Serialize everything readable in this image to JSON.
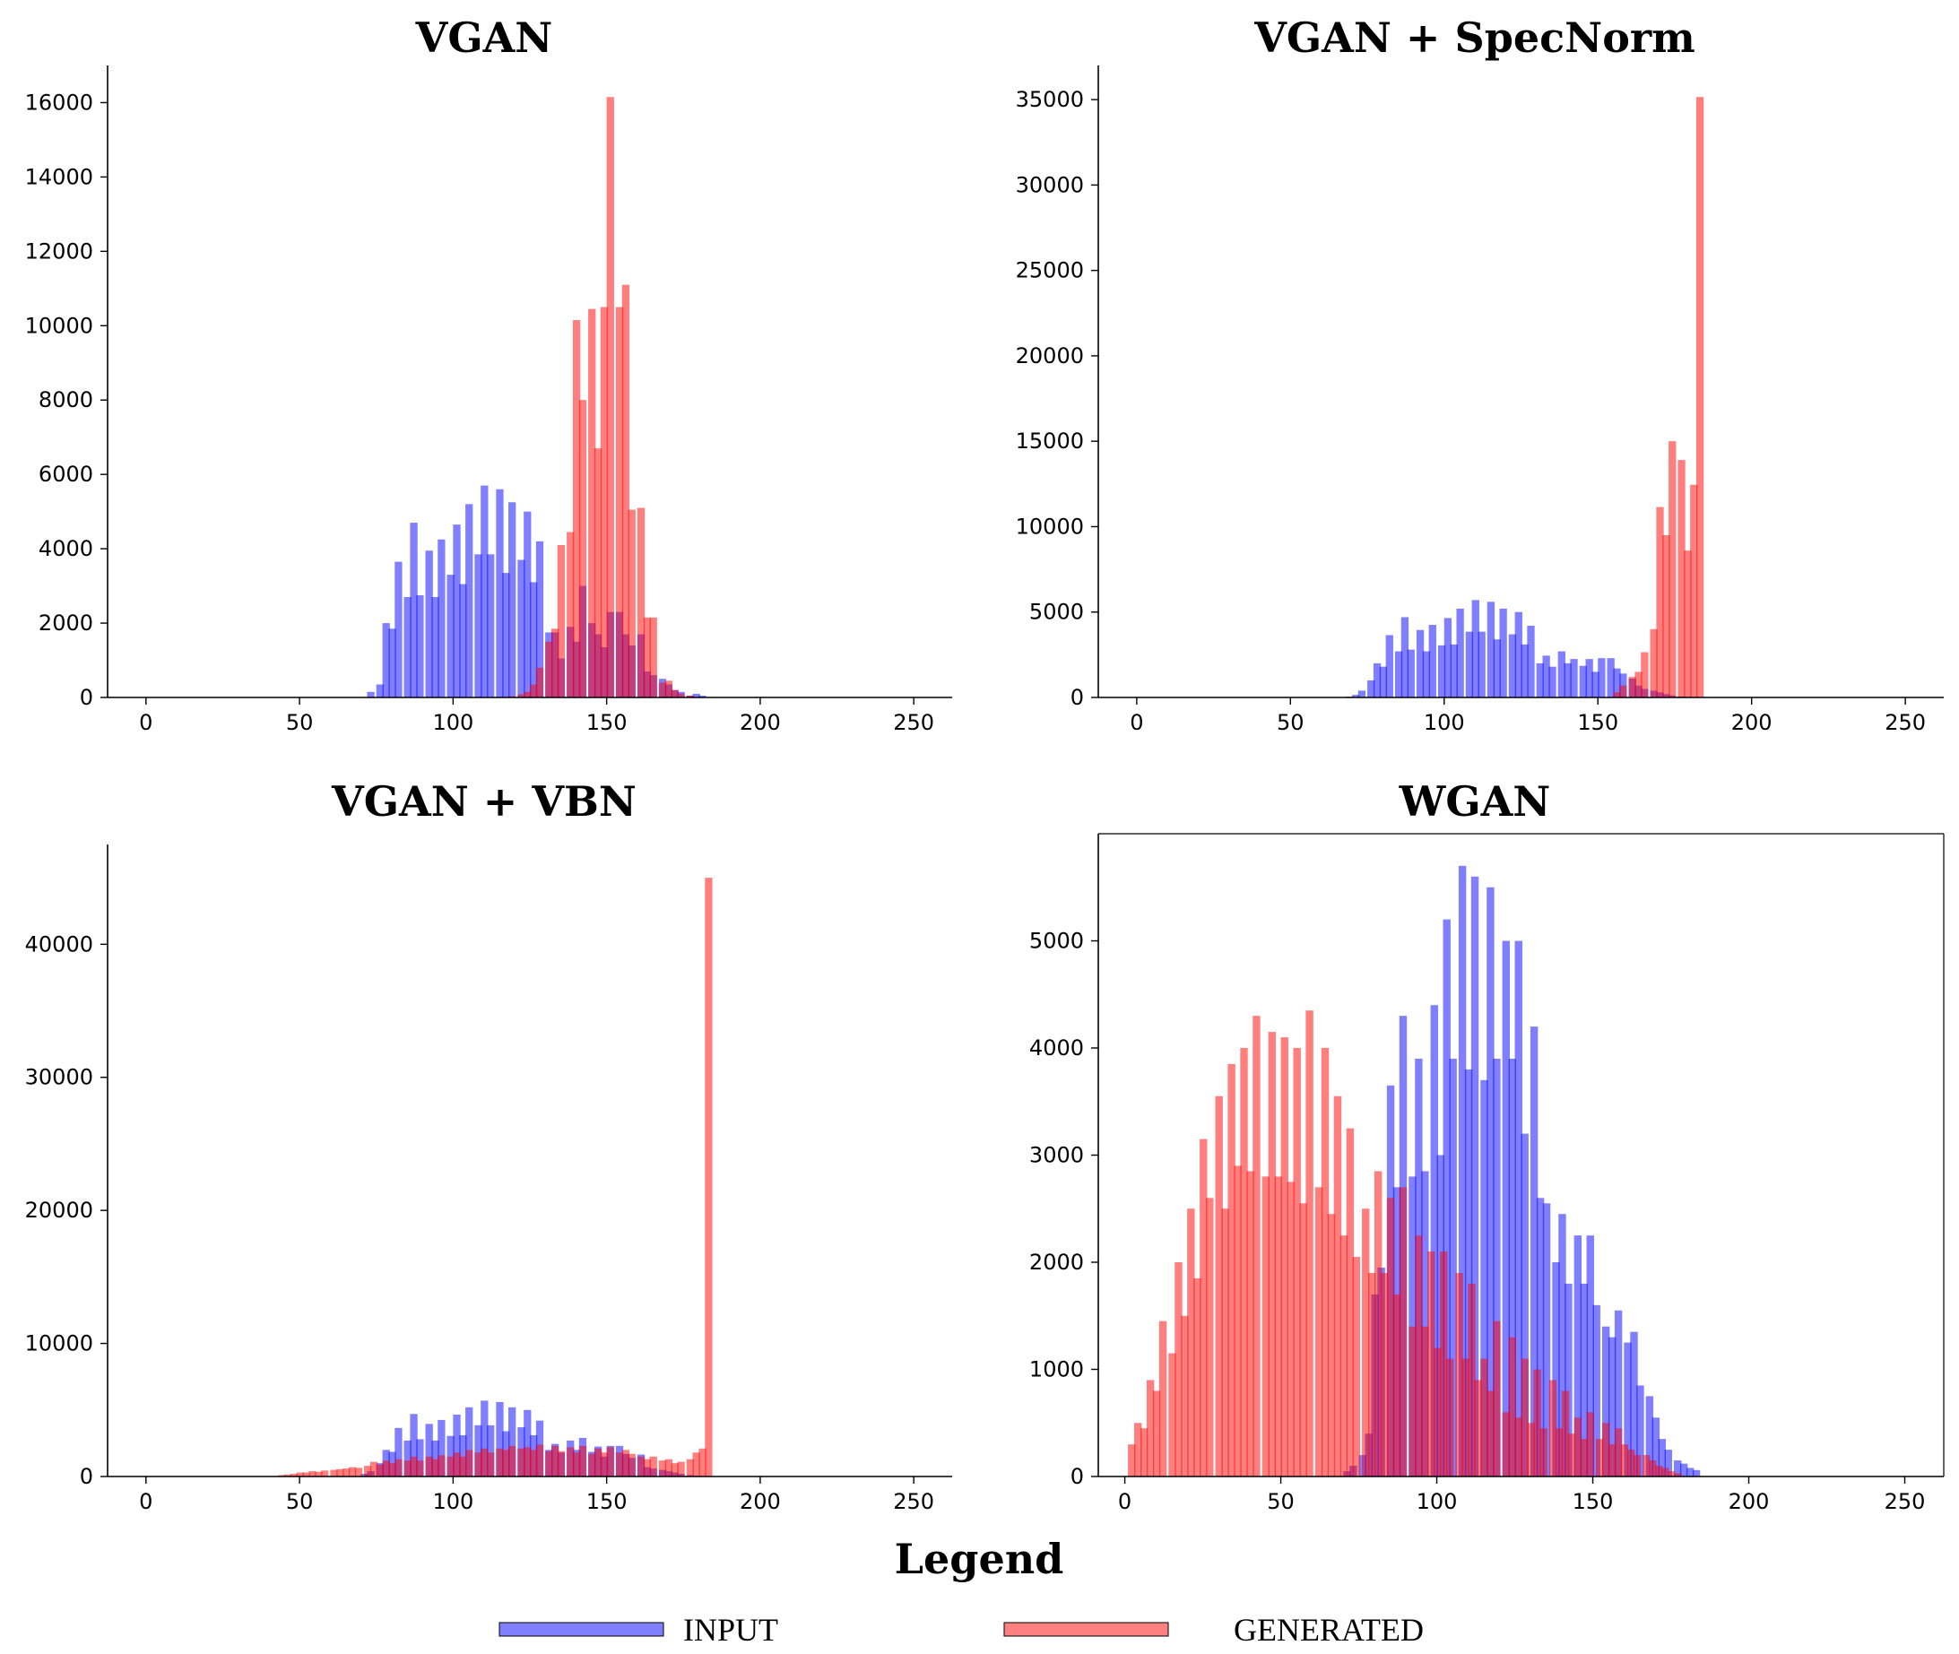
{
  "legend": {
    "title": "Legend",
    "entries": [
      {
        "label": "INPUT",
        "color": "#0000ff",
        "opacity": 0.5
      },
      {
        "label": "GENERATED",
        "color": "#ff0000",
        "opacity": 0.5
      }
    ]
  },
  "chart_data": [
    {
      "type": "bar",
      "title": "VGAN",
      "xlabel": "",
      "ylabel": "",
      "xlim": [
        -12.5,
        262.5
      ],
      "ylim": [
        0,
        17000
      ],
      "xticks": [
        0,
        50,
        100,
        150,
        200,
        250
      ],
      "yticks": [
        0,
        2000,
        4000,
        6000,
        8000,
        10000,
        12000,
        14000,
        16000
      ],
      "bin_width": 2.3,
      "grid": false,
      "series": [
        {
          "name": "INPUT",
          "color": "#0000ff",
          "x": [
            72,
            75,
            77,
            79,
            81,
            84,
            86,
            88,
            91,
            93,
            95,
            98,
            100,
            102,
            104,
            107,
            109,
            111,
            114,
            116,
            118,
            121,
            123,
            125,
            127,
            130,
            132,
            134,
            137,
            139,
            141,
            144,
            146,
            148,
            150,
            153,
            155,
            157,
            160,
            162,
            164,
            167,
            169,
            171,
            173,
            176,
            178,
            180,
            183,
            185
          ],
          "values": [
            150,
            350,
            2000,
            1850,
            3650,
            2700,
            4700,
            2750,
            3950,
            2700,
            4250,
            3300,
            4650,
            3050,
            5200,
            3850,
            5700,
            3850,
            5600,
            3350,
            5250,
            3700,
            5000,
            3100,
            4200,
            1750,
            1750,
            1050,
            1900,
            1500,
            3000,
            2000,
            1700,
            1350,
            2300,
            2300,
            1700,
            1400,
            1700,
            700,
            600,
            500,
            350,
            200,
            150,
            50,
            100,
            50,
            0,
            0
          ]
        },
        {
          "name": "GENERATED",
          "color": "#ff0000",
          "x": [
            118,
            121,
            123,
            125,
            127,
            130,
            132,
            134,
            137,
            139,
            141,
            144,
            146,
            148,
            150,
            153,
            155,
            157,
            160,
            162,
            164,
            167,
            169,
            171,
            173,
            176,
            178
          ],
          "values": [
            30,
            80,
            150,
            350,
            800,
            1500,
            1850,
            4100,
            4450,
            10150,
            8000,
            10450,
            6700,
            10500,
            16150,
            10500,
            11100,
            5050,
            5100,
            2150,
            2150,
            400,
            450,
            200,
            100,
            50,
            0
          ]
        }
      ]
    },
    {
      "type": "bar",
      "title": "VGAN + SpecNorm",
      "xlabel": "",
      "ylabel": "",
      "xlim": [
        -12.5,
        262.5
      ],
      "ylim": [
        0,
        37000
      ],
      "xticks": [
        0,
        50,
        100,
        150,
        200,
        250
      ],
      "yticks": [
        0,
        5000,
        10000,
        15000,
        20000,
        25000,
        30000,
        35000
      ],
      "bin_width": 2.3,
      "grid": false,
      "series": [
        {
          "name": "INPUT",
          "color": "#0000ff",
          "x": [
            68,
            70,
            72,
            75,
            77,
            79,
            81,
            84,
            86,
            88,
            91,
            93,
            95,
            98,
            100,
            102,
            104,
            107,
            109,
            111,
            114,
            116,
            118,
            121,
            123,
            125,
            127,
            130,
            132,
            134,
            137,
            139,
            141,
            144,
            146,
            148,
            150,
            153,
            155,
            157,
            160,
            162,
            164,
            167,
            169,
            171,
            173,
            176,
            178,
            180,
            182
          ],
          "values": [
            50,
            150,
            400,
            1000,
            2000,
            1800,
            3650,
            2700,
            4700,
            2800,
            3950,
            2700,
            4250,
            3050,
            4650,
            3100,
            5200,
            3850,
            5700,
            3850,
            5600,
            3400,
            5200,
            3700,
            5000,
            3100,
            4200,
            2000,
            2450,
            1800,
            2700,
            2000,
            2250,
            1850,
            2250,
            1500,
            2300,
            2300,
            1700,
            1400,
            1100,
            700,
            500,
            400,
            300,
            200,
            120,
            60,
            40,
            20,
            0
          ]
        },
        {
          "name": "GENERATED",
          "color": "#ff0000",
          "x": [
            155,
            157,
            160,
            162,
            164,
            167,
            169,
            171,
            173,
            176,
            178,
            180,
            182
          ],
          "values": [
            300,
            700,
            1200,
            1500,
            2650,
            4000,
            11150,
            9500,
            15000,
            13900,
            8600,
            12450,
            35150
          ]
        }
      ]
    },
    {
      "type": "bar",
      "title": "VGAN + VBN",
      "xlabel": "",
      "ylabel": "",
      "xlim": [
        -12.5,
        262.5
      ],
      "ylim": [
        0,
        47500
      ],
      "xticks": [
        0,
        50,
        100,
        150,
        200,
        250
      ],
      "yticks": [
        0,
        10000,
        20000,
        30000,
        40000
      ],
      "bin_width": 2.3,
      "grid": false,
      "series": [
        {
          "name": "INPUT",
          "color": "#0000ff",
          "x": [
            70,
            72,
            75,
            77,
            79,
            81,
            84,
            86,
            88,
            91,
            93,
            95,
            98,
            100,
            102,
            104,
            107,
            109,
            111,
            114,
            116,
            118,
            121,
            123,
            125,
            127,
            130,
            132,
            134,
            137,
            139,
            141,
            144,
            146,
            148,
            150,
            153,
            155,
            157,
            160,
            162,
            164,
            167,
            169,
            171,
            173,
            176,
            178,
            180
          ],
          "values": [
            200,
            400,
            1000,
            2000,
            1850,
            3650,
            2700,
            4700,
            2800,
            3950,
            2700,
            4250,
            3050,
            4650,
            3100,
            5200,
            3850,
            5700,
            3850,
            5600,
            3400,
            5200,
            3700,
            5000,
            3100,
            4200,
            2000,
            2450,
            1800,
            2700,
            2000,
            2900,
            1850,
            2250,
            1500,
            2300,
            2300,
            1700,
            1400,
            1650,
            700,
            600,
            500,
            400,
            300,
            200,
            100,
            50,
            0
          ]
        },
        {
          "name": "GENERATED",
          "color": "#ff0000",
          "x": [
            43,
            45,
            47,
            49,
            51,
            53,
            55,
            57,
            60,
            62,
            64,
            66,
            68,
            71,
            73,
            75,
            77,
            79,
            81,
            84,
            86,
            88,
            91,
            93,
            95,
            98,
            100,
            102,
            104,
            107,
            109,
            111,
            114,
            116,
            118,
            121,
            123,
            125,
            127,
            130,
            132,
            134,
            137,
            139,
            141,
            144,
            146,
            148,
            150,
            153,
            155,
            157,
            160,
            162,
            164,
            167,
            169,
            171,
            173,
            176,
            178,
            180,
            182
          ],
          "values": [
            100,
            150,
            200,
            300,
            300,
            400,
            350,
            450,
            500,
            550,
            600,
            700,
            650,
            800,
            1100,
            900,
            1200,
            1000,
            1300,
            1200,
            1500,
            1200,
            1500,
            1300,
            1600,
            1500,
            1800,
            1500,
            2000,
            1800,
            2100,
            1800,
            2100,
            2000,
            2300,
            2100,
            2200,
            2000,
            2400,
            1900,
            2300,
            1900,
            2200,
            1800,
            2300,
            1700,
            2100,
            1800,
            2200,
            1800,
            2000,
            1700,
            1500,
            1300,
            1500,
            1200,
            1300,
            1000,
            1100,
            1300,
            1800,
            2100,
            45000
          ]
        }
      ]
    },
    {
      "type": "bar",
      "title": "WGAN",
      "xlabel": "",
      "ylabel": "",
      "xlim": [
        -8.5,
        262.5
      ],
      "ylim": [
        0,
        6000
      ],
      "xticks": [
        0,
        50,
        100,
        150,
        200,
        250
      ],
      "yticks": [
        0,
        1000,
        2000,
        3000,
        4000,
        5000
      ],
      "bin_width": 2.3,
      "grid": false,
      "series": [
        {
          "name": "INPUT",
          "color": "#0000ff",
          "x": [
            70,
            72,
            75,
            77,
            79,
            81,
            84,
            86,
            88,
            91,
            93,
            95,
            98,
            100,
            102,
            104,
            107,
            109,
            111,
            114,
            116,
            118,
            121,
            123,
            125,
            127,
            130,
            132,
            134,
            137,
            139,
            141,
            144,
            146,
            148,
            150,
            153,
            155,
            157,
            160,
            162,
            164,
            167,
            169,
            171,
            173,
            176,
            178,
            180,
            182,
            184
          ],
          "values": [
            50,
            100,
            200,
            400,
            1700,
            1950,
            3650,
            2700,
            4300,
            2800,
            3900,
            2850,
            4400,
            3000,
            5200,
            3900,
            5700,
            3800,
            5600,
            3700,
            5500,
            3900,
            5000,
            3900,
            5000,
            3200,
            4200,
            2600,
            2550,
            2000,
            2450,
            1800,
            2250,
            1800,
            2250,
            1600,
            1400,
            1300,
            1550,
            1250,
            1350,
            850,
            750,
            550,
            350,
            250,
            150,
            120,
            80,
            60,
            0
          ]
        },
        {
          "name": "GENERATED",
          "color": "#ff0000",
          "x": [
            1,
            3,
            5,
            7,
            9,
            11,
            14,
            16,
            18,
            20,
            22,
            24,
            26,
            29,
            31,
            33,
            35,
            37,
            39,
            41,
            44,
            46,
            48,
            50,
            52,
            54,
            56,
            58,
            61,
            63,
            65,
            67,
            69,
            71,
            73,
            76,
            78,
            80,
            82,
            84,
            86,
            88,
            91,
            93,
            95,
            97,
            99,
            101,
            103,
            106,
            108,
            110,
            112,
            114,
            116,
            118,
            121,
            123,
            125,
            127,
            129,
            131,
            133,
            136,
            138,
            140,
            142,
            144,
            146,
            148,
            151,
            153,
            155,
            157,
            159,
            161,
            163,
            166,
            168,
            170,
            172,
            174,
            176,
            178
          ],
          "values": [
            300,
            500,
            450,
            900,
            800,
            1450,
            1150,
            2000,
            1500,
            2500,
            1850,
            3150,
            2600,
            3550,
            2500,
            3850,
            2900,
            4000,
            2850,
            4300,
            2800,
            4150,
            2800,
            4100,
            2750,
            4000,
            2550,
            4350,
            2700,
            4000,
            2450,
            3550,
            2250,
            3250,
            2050,
            2500,
            1900,
            2850,
            1900,
            2600,
            1700,
            2700,
            1400,
            2250,
            1400,
            2100,
            1200,
            2100,
            1100,
            1900,
            1100,
            1800,
            900,
            1100,
            800,
            1450,
            600,
            1300,
            550,
            1100,
            500,
            1000,
            450,
            900,
            450,
            800,
            400,
            550,
            350,
            600,
            350,
            500,
            300,
            450,
            300,
            250,
            200,
            200,
            150,
            100,
            80,
            50,
            30,
            0
          ]
        }
      ]
    }
  ]
}
